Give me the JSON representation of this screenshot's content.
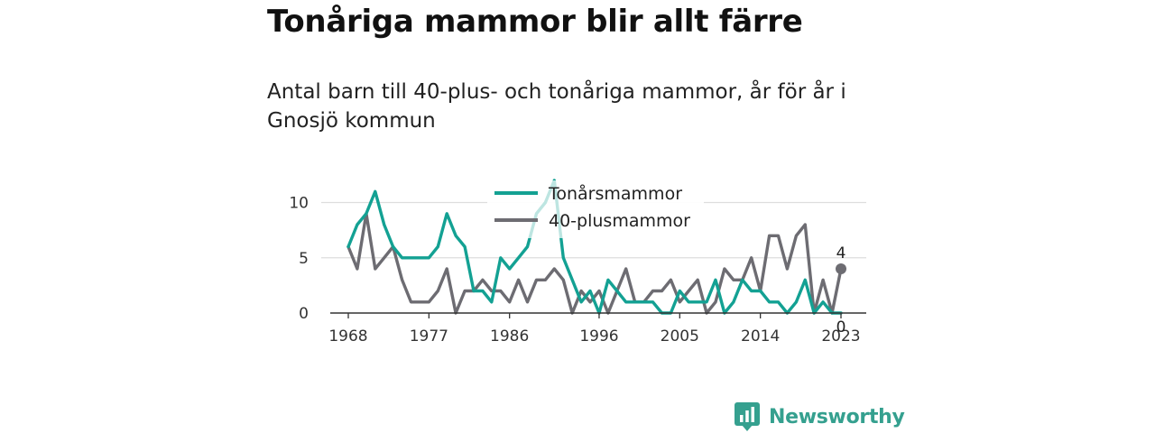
{
  "title": "Tonåriga mammor blir allt färre",
  "subtitle": "Antal barn till 40-plus- och tonåriga mammor, år för år i Gnosjö kommun",
  "brand": {
    "name": "Newsworthy",
    "icon": "newsworthy-logo-icon",
    "color": "#35a08f"
  },
  "colors": {
    "teen": "#13a193",
    "forty": "#6d6c72",
    "axis": "#333333",
    "grid": "#dddddd"
  },
  "chart_data": {
    "type": "line",
    "title": "",
    "xlabel": "",
    "ylabel": "",
    "xlim": [
      1968,
      2023
    ],
    "ylim": [
      0,
      12
    ],
    "x_ticks": [
      "1968",
      "1977",
      "1986",
      "1996",
      "2005",
      "2014",
      "2023"
    ],
    "y_ticks": [
      "0",
      "5",
      "10"
    ],
    "grid": "horizontal",
    "legend": "top-center",
    "x": [
      1968,
      1969,
      1970,
      1971,
      1972,
      1973,
      1974,
      1975,
      1976,
      1977,
      1978,
      1979,
      1980,
      1981,
      1982,
      1983,
      1984,
      1985,
      1986,
      1987,
      1988,
      1989,
      1990,
      1991,
      1992,
      1993,
      1994,
      1995,
      1996,
      1997,
      1998,
      1999,
      2000,
      2001,
      2002,
      2003,
      2004,
      2005,
      2006,
      2007,
      2008,
      2009,
      2010,
      2011,
      2012,
      2013,
      2014,
      2015,
      2016,
      2017,
      2018,
      2019,
      2020,
      2021,
      2022,
      2023
    ],
    "series": [
      {
        "name": "Tonårsmammor",
        "values": [
          6,
          8,
          9,
          11,
          8,
          6,
          5,
          5,
          5,
          5,
          6,
          9,
          7,
          6,
          2,
          2,
          1,
          5,
          4,
          5,
          6,
          9,
          10,
          12,
          5,
          3,
          1,
          2,
          0,
          3,
          2,
          1,
          1,
          1,
          1,
          0,
          0,
          2,
          1,
          1,
          1,
          3,
          0,
          1,
          3,
          2,
          2,
          1,
          1,
          0,
          1,
          3,
          0,
          1,
          0,
          0
        ],
        "end_label": "0"
      },
      {
        "name": "40-plusmammor",
        "values": [
          6,
          4,
          9,
          4,
          5,
          6,
          3,
          1,
          1,
          1,
          2,
          4,
          0,
          2,
          2,
          3,
          2,
          2,
          1,
          3,
          1,
          3,
          3,
          4,
          3,
          0,
          2,
          1,
          2,
          0,
          2,
          4,
          1,
          1,
          2,
          2,
          3,
          1,
          2,
          3,
          0,
          1,
          4,
          3,
          3,
          5,
          2,
          7,
          7,
          4,
          7,
          8,
          0,
          3,
          0,
          4
        ],
        "end_label": "4"
      }
    ]
  }
}
